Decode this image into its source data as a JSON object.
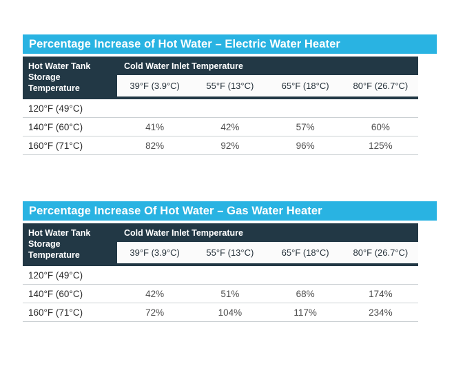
{
  "colors": {
    "accent_cyan": "#29B3E2",
    "header_navy": "#223845",
    "divider_gray": "#CBD0D3",
    "title_text": "#FFFFFF",
    "value_text": "#4F4F4F"
  },
  "tables": [
    {
      "id": "electric",
      "title": "Percentage Increase of Hot Water – Electric Water Heater",
      "row_header": "Hot Water Tank Storage Temperature",
      "col_group_header": "Cold Water Inlet Temperature",
      "col_headers": [
        "39°F (3.9°C)",
        "55°F (13°C)",
        "65°F (18°C)",
        "80°F (26.7°C)"
      ],
      "rows": [
        {
          "label": "120°F (49°C)",
          "values": [
            "",
            "",
            "",
            ""
          ]
        },
        {
          "label": "140°F (60°C)",
          "values": [
            "41%",
            "42%",
            "57%",
            "60%"
          ]
        },
        {
          "label": "160°F (71°C)",
          "values": [
            "82%",
            "92%",
            "96%",
            "125%"
          ]
        }
      ]
    },
    {
      "id": "gas",
      "title": "Percentage Increase Of Hot Water – Gas Water Heater",
      "row_header": "Hot Water Tank Storage Temperature",
      "col_group_header": "Cold Water Inlet Temperature",
      "col_headers": [
        "39°F (3.9°C)",
        "55°F (13°C)",
        "65°F (18°C)",
        "80°F (26.7°C)"
      ],
      "rows": [
        {
          "label": "120°F (49°C)",
          "values": [
            "",
            "",
            "",
            ""
          ]
        },
        {
          "label": "140°F (60°C)",
          "values": [
            "42%",
            "51%",
            "68%",
            "174%"
          ]
        },
        {
          "label": "160°F (71°C)",
          "values": [
            "72%",
            "104%",
            "117%",
            "234%"
          ]
        }
      ]
    }
  ]
}
